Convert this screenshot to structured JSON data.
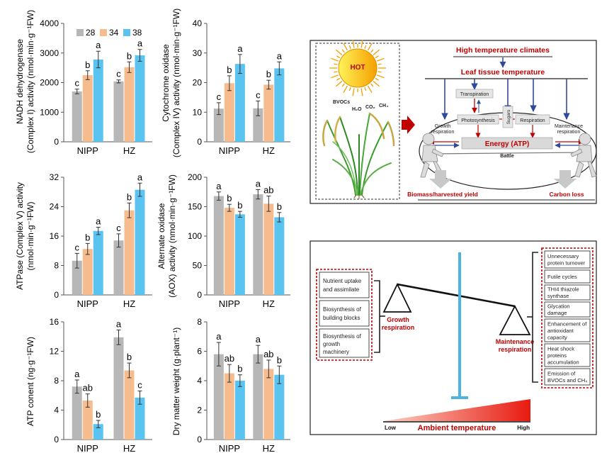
{
  "legend": {
    "items": [
      "28",
      "34",
      "38"
    ]
  },
  "colors": {
    "s28": "#b7b7b7",
    "s34": "#f7bc8e",
    "s38": "#5bc3f0",
    "accent_red": "#c00000",
    "arrow_blue": "#2e4a9a",
    "scale_blue": "#4fb3e0"
  },
  "chart_data": [
    {
      "type": "bar",
      "ylabel_lines": [
        "NADH dehydrogenase",
        "(Complex I) activity (nmol·min·g⁻¹FW)"
      ],
      "ylim": [
        0,
        4000
      ],
      "yticks": [
        "0",
        "1000",
        "2000",
        "3000",
        "4000"
      ],
      "categories": [
        "NIPP",
        "HZ"
      ],
      "series": [
        {
          "name": "28",
          "values": [
            1700,
            2040
          ],
          "errors": [
            80,
            50
          ],
          "letters": [
            "c",
            "c"
          ]
        },
        {
          "name": "34",
          "values": [
            2250,
            2520
          ],
          "errors": [
            150,
            180
          ],
          "letters": [
            "b",
            "b"
          ]
        },
        {
          "name": "38",
          "values": [
            2780,
            2920
          ],
          "errors": [
            280,
            200
          ],
          "letters": [
            "a",
            "a"
          ]
        }
      ]
    },
    {
      "type": "bar",
      "ylabel_lines": [
        "Cytochrome oxidase",
        "(Complex IV) activity (nmol·min·g⁻¹FW)"
      ],
      "ylim": [
        0,
        40
      ],
      "yticks": [
        "0",
        "10",
        "20",
        "30",
        "40"
      ],
      "categories": [
        "NIPP",
        "HZ"
      ],
      "series": [
        {
          "name": "28",
          "values": [
            11.2,
            11.3
          ],
          "errors": [
            2,
            2.5
          ],
          "letters": [
            "c",
            "c"
          ]
        },
        {
          "name": "34",
          "values": [
            19.8,
            19.3
          ],
          "errors": [
            2.5,
            1.5
          ],
          "letters": [
            "b",
            "b"
          ]
        },
        {
          "name": "38",
          "values": [
            26.3,
            24.8
          ],
          "errors": [
            3.2,
            2.2
          ],
          "letters": [
            "a",
            "a"
          ]
        }
      ]
    },
    {
      "type": "bar",
      "ylabel_lines": [
        "ATPase (Complex V) activity",
        "(nmol·min·g⁻¹FW)"
      ],
      "ylim": [
        0,
        32
      ],
      "yticks": [
        "0",
        "8",
        "16",
        "24",
        "32"
      ],
      "categories": [
        "NIPP",
        "HZ"
      ],
      "series": [
        {
          "name": "28",
          "values": [
            9.3,
            14.8
          ],
          "errors": [
            2,
            1.8
          ],
          "letters": [
            "c",
            "c"
          ]
        },
        {
          "name": "34",
          "values": [
            12.5,
            23.0
          ],
          "errors": [
            1.5,
            2
          ],
          "letters": [
            "b",
            "b"
          ]
        },
        {
          "name": "38",
          "values": [
            17.4,
            28.6
          ],
          "errors": [
            1,
            1.8
          ],
          "letters": [
            "a",
            "a"
          ]
        }
      ]
    },
    {
      "type": "bar",
      "ylabel_lines": [
        "Alternate oxidase",
        "(AOX) activity (nmol·min·g⁻¹FW)"
      ],
      "ylim": [
        0,
        200
      ],
      "yticks": [
        "0",
        "50",
        "100",
        "150",
        "200"
      ],
      "categories": [
        "NIPP",
        "HZ"
      ],
      "series": [
        {
          "name": "28",
          "values": [
            168,
            171
          ],
          "errors": [
            7,
            8
          ],
          "letters": [
            "a",
            "a"
          ]
        },
        {
          "name": "34",
          "values": [
            148,
            155
          ],
          "errors": [
            6,
            13
          ],
          "letters": [
            "b",
            "ab"
          ]
        },
        {
          "name": "38",
          "values": [
            137,
            132
          ],
          "errors": [
            5,
            8
          ],
          "letters": [
            "b",
            "b"
          ]
        }
      ]
    },
    {
      "type": "bar",
      "ylabel_lines": [
        "ATP conent (ng·g⁻¹FW)"
      ],
      "ylim": [
        0,
        16
      ],
      "yticks": [
        "0",
        "4",
        "8",
        "12",
        "16"
      ],
      "categories": [
        "NIPP",
        "HZ"
      ],
      "series": [
        {
          "name": "28",
          "values": [
            7.2,
            13.9
          ],
          "errors": [
            0.9,
            1.0
          ],
          "letters": [
            "a",
            "a"
          ]
        },
        {
          "name": "34",
          "values": [
            5.3,
            9.4
          ],
          "errors": [
            0.9,
            1.0
          ],
          "letters": [
            "ab",
            "b"
          ]
        },
        {
          "name": "38",
          "values": [
            2.1,
            5.7
          ],
          "errors": [
            0.5,
            0.9
          ],
          "letters": [
            "b",
            "c"
          ]
        }
      ]
    },
    {
      "type": "bar",
      "ylabel_lines": [
        "Dry matter weight (g·plant⁻¹)"
      ],
      "ylim": [
        0,
        8
      ],
      "yticks": [
        "0",
        "2",
        "4",
        "6",
        "8"
      ],
      "categories": [
        "NIPP",
        "HZ"
      ],
      "series": [
        {
          "name": "28",
          "values": [
            5.8,
            5.8
          ],
          "errors": [
            0.8,
            0.6
          ],
          "letters": [
            "a",
            "a"
          ]
        },
        {
          "name": "34",
          "values": [
            4.5,
            4.8
          ],
          "errors": [
            0.6,
            0.6
          ],
          "letters": [
            "ab",
            "ab"
          ]
        },
        {
          "name": "38",
          "values": [
            4.0,
            4.4
          ],
          "errors": [
            0.4,
            0.6
          ],
          "letters": [
            "b",
            "b"
          ]
        }
      ]
    }
  ],
  "diagram1": {
    "hot": "HOT",
    "bvocs": "BVOCs",
    "h2o": "H₂O",
    "co2": "CO₂",
    "ch4": "CH₄",
    "high_temp": "High temperature climates",
    "leaf_temp": "Leaf tissue temperature",
    "transpiration": "Transpiration",
    "photosynthesis": "Photosynthesis",
    "sugars": "Sugars",
    "respiration": "Respiration",
    "growth_resp": [
      "Growth",
      "respiration"
    ],
    "maint_resp": [
      "Maintenance",
      "respiration"
    ],
    "energy": "Energy (ATP)",
    "battle": "Battle",
    "biomass": "Biomass/harvested yield",
    "carbon_loss": "Carbon loss"
  },
  "diagram2": {
    "left_items": [
      [
        "Nutrient uptake",
        "and assimilate"
      ],
      [
        "Biosynthesis of",
        "building blocks"
      ],
      [
        "Biosynthesis of",
        "growth",
        "machinery"
      ]
    ],
    "growth_label": [
      "Growth",
      "respiration"
    ],
    "maint_label": [
      "Maintenance",
      "respiration"
    ],
    "right_items": [
      [
        "Unnecessary",
        "protein turnover"
      ],
      [
        "Futile cycles"
      ],
      [
        "THI4 thiazole",
        "synthase"
      ],
      [
        "Glycation",
        "damage"
      ],
      [
        "Enhancement of",
        "antioxidant",
        "capacity"
      ],
      [
        "Heat shock",
        "proteins",
        "accumulation"
      ],
      [
        "Emission of",
        "BVOCs and CH₄"
      ]
    ],
    "ambient": "Ambient temperature",
    "low": "Low",
    "high": "High"
  }
}
